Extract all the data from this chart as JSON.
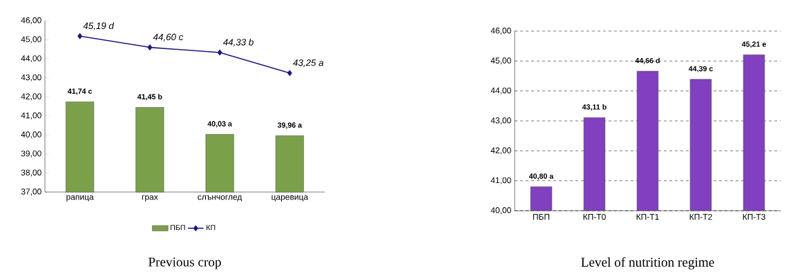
{
  "chart_data": [
    {
      "type": "bar",
      "xlabel": "Previous crop",
      "categories": [
        "рапица",
        "грах",
        "слънчоглед",
        "царевица"
      ],
      "series": [
        {
          "name": "ПБП",
          "color": "#7aa04a",
          "values": [
            41.74,
            41.45,
            40.03,
            39.96
          ],
          "value_labels": [
            "41,74 c",
            "41,45 b",
            "40,03 a",
            "39,96 a"
          ]
        },
        {
          "name": "КП",
          "type": "line",
          "color": "#1a1a80",
          "marker": "diamond",
          "values": [
            45.19,
            44.6,
            44.33,
            43.25
          ],
          "value_labels": [
            "45,19 d",
            "44,60 c",
            "44,33 b",
            "43,25 a"
          ]
        }
      ],
      "ylim": [
        37,
        46
      ],
      "yticks": [
        {
          "value": 37,
          "label": "37,00"
        },
        {
          "value": 38,
          "label": "38,00"
        },
        {
          "value": 39,
          "label": "39,00"
        },
        {
          "value": 40,
          "label": "40,00"
        },
        {
          "value": 41,
          "label": "41,00"
        },
        {
          "value": 42,
          "label": "42,00"
        },
        {
          "value": 43,
          "label": "43,00"
        },
        {
          "value": 44,
          "label": "44,00"
        },
        {
          "value": 45,
          "label": "45,00"
        },
        {
          "value": 46,
          "label": "46,00"
        }
      ],
      "legend": "bottom"
    },
    {
      "type": "bar",
      "xlabel": "Level of nutrition regime",
      "categories": [
        "ПБП",
        "КП-Т0",
        "КП-Т1",
        "КП-Т2",
        "КП-Т3"
      ],
      "series": [
        {
          "color": "#8040c0",
          "values": [
            40.8,
            43.11,
            44.66,
            44.39,
            45.21
          ],
          "value_labels": [
            "40,80 a",
            "43,11 b",
            "44,66 d",
            "44,39 c",
            "45,21 e"
          ]
        }
      ],
      "ylim": [
        40,
        46
      ],
      "yticks": [
        {
          "value": 40,
          "label": "40,00"
        },
        {
          "value": 41,
          "label": "41,00"
        },
        {
          "value": 42,
          "label": "42,00"
        },
        {
          "value": 43,
          "label": "43,00"
        },
        {
          "value": 44,
          "label": "44,00"
        },
        {
          "value": 45,
          "label": "45,00"
        },
        {
          "value": 46,
          "label": "46,00"
        }
      ],
      "grid": "y"
    }
  ]
}
